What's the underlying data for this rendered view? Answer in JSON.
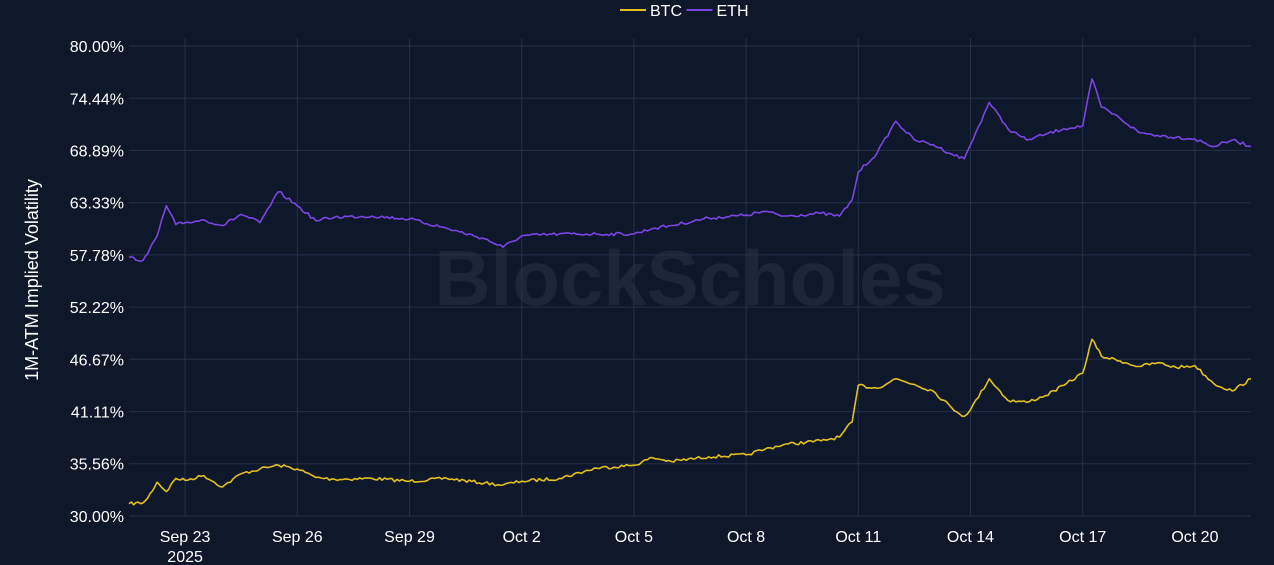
{
  "watermark": "BlockScholes",
  "chart_data": {
    "type": "line",
    "title": "",
    "xlabel": "",
    "ylabel": "1M-ATM Implied Volatility",
    "legend_position": "top-center",
    "grid": true,
    "ylim": [
      30.0,
      80.0
    ],
    "xlim": [
      "2025-09-21T12:00",
      "2025-10-21T12:00"
    ],
    "y_ticks": [
      "30.00%",
      "35.56%",
      "41.11%",
      "46.67%",
      "52.22%",
      "57.78%",
      "63.33%",
      "68.89%",
      "74.44%",
      "80.00%"
    ],
    "x_ticks": [
      {
        "date": "2025-09-23",
        "label": "Sep 23",
        "sublabel": "2025"
      },
      {
        "date": "2025-09-26",
        "label": "Sep 26"
      },
      {
        "date": "2025-09-29",
        "label": "Sep 29"
      },
      {
        "date": "2025-10-02",
        "label": "Oct 2"
      },
      {
        "date": "2025-10-05",
        "label": "Oct 5"
      },
      {
        "date": "2025-10-08",
        "label": "Oct 8"
      },
      {
        "date": "2025-10-11",
        "label": "Oct 11"
      },
      {
        "date": "2025-10-14",
        "label": "Oct 14"
      },
      {
        "date": "2025-10-17",
        "label": "Oct 17"
      },
      {
        "date": "2025-10-20",
        "label": "Oct 20"
      }
    ],
    "series": [
      {
        "name": "BTC",
        "color": "#e3c01c",
        "x": [
          "2025-09-21T12:00",
          "2025-09-21T21:00",
          "2025-09-22T00:00",
          "2025-09-22T06:00",
          "2025-09-22T12:00",
          "2025-09-22T18:00",
          "2025-09-23T00:00",
          "2025-09-23T12:00",
          "2025-09-24T00:00",
          "2025-09-24T12:00",
          "2025-09-25T00:00",
          "2025-09-25T12:00",
          "2025-09-26T00:00",
          "2025-09-26T12:00",
          "2025-09-27T00:00",
          "2025-09-28T00:00",
          "2025-09-29T00:00",
          "2025-09-30T00:00",
          "2025-10-01T00:00",
          "2025-10-01T12:00",
          "2025-10-02T00:00",
          "2025-10-03T00:00",
          "2025-10-04T00:00",
          "2025-10-05T00:00",
          "2025-10-05T12:00",
          "2025-10-06T00:00",
          "2025-10-07T00:00",
          "2025-10-08T00:00",
          "2025-10-08T12:00",
          "2025-10-09T00:00",
          "2025-10-10T00:00",
          "2025-10-10T12:00",
          "2025-10-10T20:00",
          "2025-10-11T00:00",
          "2025-10-11T12:00",
          "2025-10-12T00:00",
          "2025-10-12T12:00",
          "2025-10-13T00:00",
          "2025-10-13T12:00",
          "2025-10-13T20:00",
          "2025-10-14T00:00",
          "2025-10-14T12:00",
          "2025-10-15T00:00",
          "2025-10-15T12:00",
          "2025-10-16T00:00",
          "2025-10-16T12:00",
          "2025-10-17T00:00",
          "2025-10-17T06:00",
          "2025-10-17T12:00",
          "2025-10-18T00:00",
          "2025-10-18T12:00",
          "2025-10-19T00:00",
          "2025-10-19T12:00",
          "2025-10-20T00:00",
          "2025-10-20T12:00",
          "2025-10-21T00:00",
          "2025-10-21T12:00"
        ],
        "y": [
          31.3,
          31.4,
          31.9,
          33.6,
          32.6,
          34.0,
          33.8,
          34.3,
          33.1,
          34.5,
          35.0,
          35.4,
          35.0,
          34.1,
          33.9,
          34.0,
          33.7,
          34.0,
          33.5,
          33.3,
          33.7,
          34.0,
          35.1,
          35.4,
          36.2,
          35.8,
          36.3,
          36.5,
          37.1,
          37.6,
          38.0,
          38.4,
          40.0,
          43.9,
          43.6,
          44.6,
          44.0,
          43.3,
          41.5,
          40.6,
          41.3,
          44.6,
          42.3,
          42.1,
          42.8,
          43.9,
          45.2,
          48.8,
          47.0,
          46.5,
          45.9,
          46.3,
          45.8,
          46.0,
          44.1,
          43.3,
          44.6
        ]
      },
      {
        "name": "ETH",
        "color": "#7b45e4",
        "x": [
          "2025-09-21T12:00",
          "2025-09-21T21:00",
          "2025-09-22T00:00",
          "2025-09-22T06:00",
          "2025-09-22T12:00",
          "2025-09-22T18:00",
          "2025-09-23T00:00",
          "2025-09-23T12:00",
          "2025-09-24T00:00",
          "2025-09-24T12:00",
          "2025-09-25T00:00",
          "2025-09-25T12:00",
          "2025-09-26T00:00",
          "2025-09-26T12:00",
          "2025-09-27T00:00",
          "2025-09-28T00:00",
          "2025-09-29T00:00",
          "2025-09-30T00:00",
          "2025-10-01T00:00",
          "2025-10-01T12:00",
          "2025-10-02T00:00",
          "2025-10-03T00:00",
          "2025-10-04T00:00",
          "2025-10-05T00:00",
          "2025-10-05T12:00",
          "2025-10-06T00:00",
          "2025-10-07T00:00",
          "2025-10-08T00:00",
          "2025-10-08T12:00",
          "2025-10-09T00:00",
          "2025-10-10T00:00",
          "2025-10-10T12:00",
          "2025-10-10T20:00",
          "2025-10-11T00:00",
          "2025-10-11T12:00",
          "2025-10-12T00:00",
          "2025-10-12T12:00",
          "2025-10-13T00:00",
          "2025-10-13T12:00",
          "2025-10-13T20:00",
          "2025-10-14T00:00",
          "2025-10-14T12:00",
          "2025-10-15T00:00",
          "2025-10-15T12:00",
          "2025-10-16T00:00",
          "2025-10-16T12:00",
          "2025-10-17T00:00",
          "2025-10-17T06:00",
          "2025-10-17T12:00",
          "2025-10-18T00:00",
          "2025-10-18T12:00",
          "2025-10-19T00:00",
          "2025-10-19T12:00",
          "2025-10-20T00:00",
          "2025-10-20T12:00",
          "2025-10-21T00:00",
          "2025-10-21T12:00"
        ],
        "y": [
          57.5,
          57.2,
          57.9,
          59.8,
          63.0,
          61.0,
          61.2,
          61.5,
          60.9,
          62.1,
          61.2,
          64.5,
          63.0,
          61.4,
          61.8,
          61.9,
          61.6,
          60.6,
          59.5,
          58.6,
          59.8,
          60.0,
          60.0,
          60.0,
          60.6,
          60.9,
          61.7,
          62.0,
          62.4,
          61.9,
          62.2,
          61.9,
          63.6,
          66.6,
          68.6,
          72.0,
          70.0,
          69.5,
          68.5,
          68.0,
          69.5,
          74.0,
          71.2,
          70.0,
          70.6,
          71.2,
          71.5,
          76.5,
          73.5,
          72.3,
          70.8,
          70.5,
          70.3,
          70.1,
          69.3,
          70.0,
          69.3
        ]
      }
    ]
  }
}
